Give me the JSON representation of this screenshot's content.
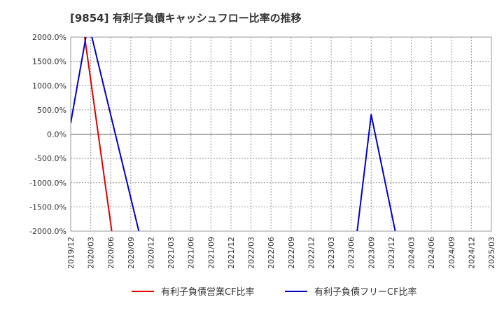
{
  "chart_data": {
    "type": "line",
    "title": "[9854]  有利子負債キャッシュフロー比率の推移",
    "xlabel": "",
    "ylabel": "",
    "y_axis": {
      "min": -2000,
      "max": 2000,
      "tick_values": [
        2000,
        1500,
        1000,
        500,
        0,
        -500,
        -1000,
        -1500,
        -2000
      ],
      "tick_labels": [
        "2000.0%",
        "1500.0%",
        "1000.0%",
        "500.0%",
        "0.0%",
        "-500.0%",
        "-1000.0%",
        "-1500.0%",
        "-2000.0%"
      ]
    },
    "x_axis": {
      "tick_labels": [
        "2019/12",
        "2020/03",
        "2020/06",
        "2020/09",
        "2020/12",
        "2021/03",
        "2021/06",
        "2021/09",
        "2021/12",
        "2022/03",
        "2022/06",
        "2022/09",
        "2022/12",
        "2023/03",
        "2023/06",
        "2023/09",
        "2023/12",
        "2024/03",
        "2024/06",
        "2024/09",
        "2024/12",
        "2025/03"
      ]
    },
    "grid": true,
    "legend_position": "bottom",
    "series": [
      {
        "name": "有利子負債営業CF比率",
        "color": "#dd0000",
        "segments": [
          [
            {
              "x": 0.7,
              "y": 2000
            },
            {
              "x": 2.05,
              "y": -2000
            }
          ]
        ]
      },
      {
        "name": "有利子負債フリーCF比率",
        "color": "#0000cc",
        "segments": [
          [
            {
              "x": 0,
              "y": 230
            },
            {
              "x": 0.8,
              "y": 2100
            },
            {
              "x": 1,
              "y": 2100
            },
            {
              "x": 3.4,
              "y": -2000
            }
          ],
          [
            {
              "x": 14.3,
              "y": -2000
            },
            {
              "x": 15,
              "y": 400
            },
            {
              "x": 16.2,
              "y": -2000
            }
          ]
        ]
      }
    ]
  }
}
